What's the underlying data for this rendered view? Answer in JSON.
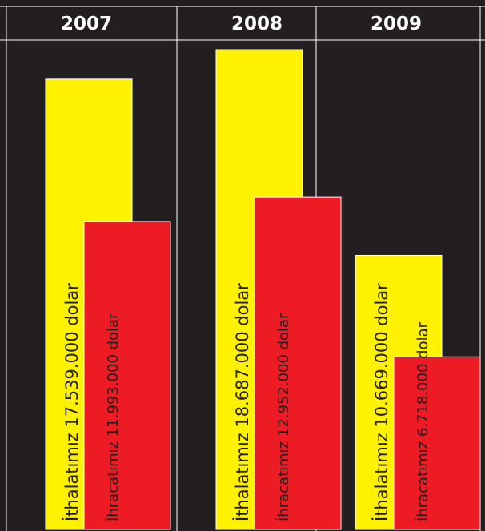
{
  "chart_data": {
    "type": "bar",
    "title": "",
    "xlabel": "",
    "ylabel": "",
    "categories": [
      "2007",
      "2008",
      "2009"
    ],
    "series": [
      {
        "name": "İthalatımız",
        "color": "#fff200",
        "values": [
          17539000,
          18687000,
          10669000
        ]
      },
      {
        "name": "İhracatımız",
        "color": "#ed1c24",
        "values": [
          11993000,
          12952000,
          6718000
        ]
      }
    ],
    "bar_labels": [
      [
        "İthalatımız  17.539.000 dolar",
        "İhracatımız  11.993.000 dolar"
      ],
      [
        "İthalatımız  18.687.000 dolar",
        "İhracatımız  12.952.000 dolar"
      ],
      [
        "İthalatımız  10.669.000 dolar",
        "İhracatımız  6.718.000 dolar"
      ]
    ],
    "ylim": [
      0,
      18687000
    ],
    "grid": false,
    "legend": "none"
  },
  "colors": {
    "background": "#231f20",
    "divider": "#ffffff",
    "year_text": "#ffffff",
    "label_text": "#231f20"
  }
}
